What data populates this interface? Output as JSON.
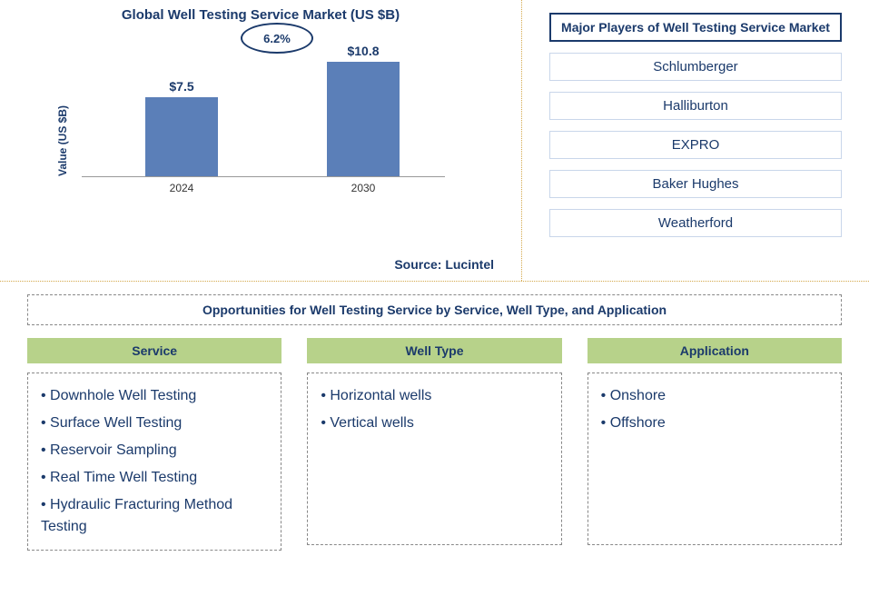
{
  "chart": {
    "type": "bar",
    "title": "Global Well Testing Service Market (US $B)",
    "ylabel": "Value (US $B)",
    "categories": [
      "2024",
      "2030"
    ],
    "values": [
      7.5,
      10.8
    ],
    "value_labels": [
      "$7.5",
      "$10.8"
    ],
    "bar_color": "#5b7fb8",
    "ylim_max": 12,
    "growth_label": "6.2%",
    "source_text": "Source: Lucintel",
    "title_color": "#1b3a6b",
    "bg_color": "#ffffff",
    "ellipse_border": "#1b3a6b",
    "arrow_color": "#1b3a6b"
  },
  "players": {
    "title": "Major Players of Well Testing Service Market",
    "items": [
      "Schlumberger",
      "Halliburton",
      "EXPRO",
      "Baker Hughes",
      "Weatherford"
    ]
  },
  "opportunities": {
    "title": "Opportunities for Well Testing Service by Service, Well Type, and Application",
    "columns": [
      {
        "header": "Service",
        "items": [
          "Downhole Well Testing",
          "Surface Well Testing",
          "Reservoir Sampling",
          "Real Time Well Testing",
          "Hydraulic Fracturing Method Testing"
        ]
      },
      {
        "header": "Well Type",
        "items": [
          "Horizontal wells",
          "Vertical wells"
        ]
      },
      {
        "header": "Application",
        "items": [
          "Onshore",
          "Offshore"
        ]
      }
    ]
  },
  "styles": {
    "header_bg": "#b7d28a",
    "text_color": "#1b3a6b",
    "divider_color": "#d4a84b",
    "box_border": "#888888",
    "player_border": "#c9d6ea"
  }
}
